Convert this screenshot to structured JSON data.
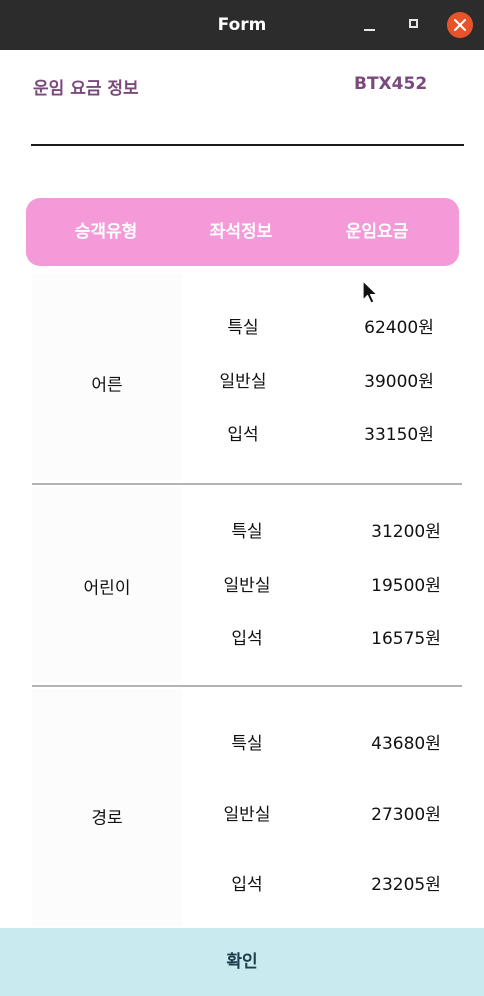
{
  "window": {
    "title": "Form"
  },
  "header": {
    "title": "운임 요금 정보",
    "code": "BTX452"
  },
  "table": {
    "columns": [
      "승객유형",
      "좌석정보",
      "운임요금"
    ],
    "groups": [
      {
        "type": "어른",
        "rows": [
          {
            "seat": "특실",
            "fare": "62400원"
          },
          {
            "seat": "일반실",
            "fare": "39000원"
          },
          {
            "seat": "입석",
            "fare": "33150원"
          }
        ]
      },
      {
        "type": "어린이",
        "rows": [
          {
            "seat": "특실",
            "fare": "31200원"
          },
          {
            "seat": "일반실",
            "fare": "19500원"
          },
          {
            "seat": "입석",
            "fare": "16575원"
          }
        ]
      },
      {
        "type": "경로",
        "rows": [
          {
            "seat": "특실",
            "fare": "43680원"
          },
          {
            "seat": "일반실",
            "fare": "27300원"
          },
          {
            "seat": "입석",
            "fare": "23205원"
          }
        ]
      }
    ]
  },
  "confirm_label": "확인",
  "colors": {
    "accent": "#f59ad9",
    "title_text": "#7b4a7d",
    "confirm_bg": "#c9ebef",
    "close_button": "#e8542a"
  },
  "icons": [
    "minimize-icon",
    "maximize-icon",
    "close-icon",
    "mouse-cursor-icon"
  ]
}
